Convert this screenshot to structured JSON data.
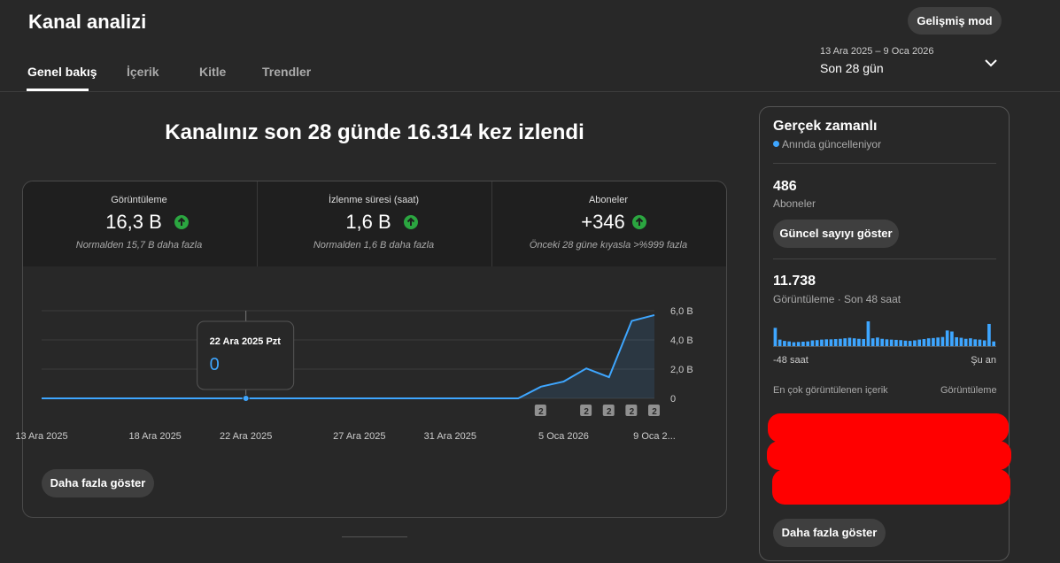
{
  "header": {
    "title": "Kanal analizi",
    "advanced_button": "Gelişmiş mod"
  },
  "tabs": [
    "Genel bakış",
    "İçerik",
    "Kitle",
    "Trendler"
  ],
  "date_range": {
    "range": "13 Ara 2025 – 9 Oca 2026",
    "label": "Son 28 gün"
  },
  "headline": "Kanalınız son 28 günde 16.314 kez izlendi",
  "metrics": [
    {
      "label": "Görüntüleme",
      "value": "16,3 B",
      "note": "Normalden 15,7 B daha fazla"
    },
    {
      "label": "İzlenme süresi (saat)",
      "value": "1,6 B",
      "note": "Normalden 1,6 B daha fazla"
    },
    {
      "label": "Aboneler",
      "value": "+346",
      "note": "Önceki 28 güne kıyasla >%999 fazla"
    }
  ],
  "overview": {
    "show_more": "Daha fazla göster"
  },
  "chart_data": [
    {
      "type": "line",
      "color": "#3ea6ff",
      "categories": [
        "13 Ara 2025",
        null,
        null,
        null,
        null,
        "18 Ara 2025",
        null,
        null,
        null,
        "22 Ara 2025",
        null,
        null,
        null,
        null,
        "27 Ara 2025",
        null,
        null,
        null,
        "31 Ara 2025",
        null,
        null,
        null,
        null,
        "5 Oca 2026",
        null,
        null,
        null,
        "9 Oca 2..."
      ],
      "values": [
        0,
        0,
        0,
        0,
        0,
        0,
        0,
        0,
        0,
        0,
        0,
        0,
        0,
        0,
        0,
        0,
        0,
        0,
        0,
        0,
        0,
        0,
        0.8,
        1.15,
        2.05,
        1.45,
        5.3,
        5.7
      ],
      "annotations": [
        null,
        null,
        null,
        null,
        null,
        null,
        null,
        null,
        null,
        null,
        null,
        null,
        null,
        null,
        null,
        null,
        null,
        null,
        null,
        null,
        null,
        null,
        "2",
        null,
        "2",
        "2",
        "2",
        "2"
      ],
      "ylim": [
        0,
        6
      ],
      "yticks": [
        0,
        {
          "value": 2,
          "label": "2,0 B"
        },
        {
          "value": 4,
          "label": "4,0 B"
        },
        {
          "value": 6,
          "label": "6,0 B"
        }
      ],
      "grid": true,
      "tooltip": {
        "label": "22 Ara 2025 Pzt",
        "value": 0
      }
    },
    {
      "type": "bar",
      "color": "#3ea6ff",
      "categories": [
        "-48 saat",
        null,
        null,
        null,
        null,
        null,
        null,
        null,
        null,
        null,
        null,
        null,
        null,
        null,
        null,
        null,
        null,
        null,
        null,
        null,
        null,
        null,
        null,
        null,
        null,
        null,
        null,
        null,
        null,
        null,
        null,
        null,
        null,
        null,
        null,
        null,
        null,
        null,
        null,
        null,
        null,
        null,
        null,
        null,
        null,
        null,
        null,
        "Şu an"
      ],
      "values": [
        700,
        250,
        200,
        180,
        150,
        160,
        170,
        180,
        220,
        230,
        250,
        260,
        260,
        270,
        280,
        300,
        320,
        300,
        280,
        270,
        950,
        300,
        330,
        280,
        260,
        250,
        240,
        230,
        210,
        200,
        220,
        250,
        270,
        300,
        310,
        330,
        350,
        600,
        560,
        340,
        320,
        280,
        300,
        260,
        250,
        220,
        850,
        180
      ]
    }
  ],
  "realtime": {
    "title": "Gerçek zamanlı",
    "status": "Anında güncelleniyor",
    "subscribers": {
      "value": "486",
      "label": "Aboneler",
      "button": "Güncel sayıyı göster"
    },
    "views": {
      "value": "11.738",
      "label": "Görüntüleme · Son 48 saat"
    },
    "top_content": {
      "heading": "En çok görüntülenen içerik",
      "metric": "Görüntüleme"
    },
    "show_more": "Daha fazla göster"
  }
}
